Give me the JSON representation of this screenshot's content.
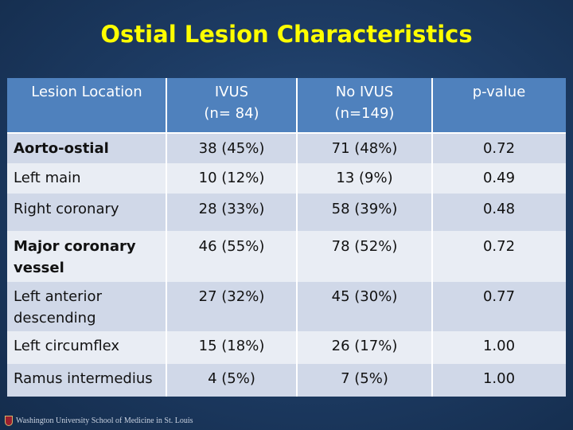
{
  "title": "Ostial Lesion Characteristics",
  "table": {
    "headers": [
      {
        "line1": "Lesion Location",
        "line2": ""
      },
      {
        "line1": "IVUS",
        "line2": "(n= 84)"
      },
      {
        "line1": "No IVUS",
        "line2": "(n=149)"
      },
      {
        "line1": "p-value",
        "line2": ""
      }
    ],
    "rows": [
      {
        "label": "Aorto-ostial",
        "ivus": "38 (45%)",
        "no_ivus": "71 (48%)",
        "p": "0.72"
      },
      {
        "label": "Left main",
        "ivus": "10 (12%)",
        "no_ivus": "13 (9%)",
        "p": "0.49"
      },
      {
        "label": "Right coronary",
        "ivus": "28 (33%)",
        "no_ivus": "58 (39%)",
        "p": "0.48"
      },
      {
        "label_line1": "Major coronary",
        "label_line2": "vessel",
        "ivus": "46 (55%)",
        "no_ivus": "78 (52%)",
        "p": "0.72"
      },
      {
        "label_line1": "Left anterior",
        "label_line2": "descending",
        "ivus": "27 (32%)",
        "no_ivus": "45 (30%)",
        "p": "0.77"
      },
      {
        "label": "Left circumflex",
        "ivus": "15 (18%)",
        "no_ivus": "26 (17%)",
        "p": "1.00"
      },
      {
        "label": "Ramus intermedius",
        "ivus": "4 (5%)",
        "no_ivus": "7 (5%)",
        "p": "1.00"
      }
    ]
  },
  "footer": {
    "logo_text": "Washington University School of Medicine in St. Louis",
    "logo_icon": "university-shield-icon"
  }
}
